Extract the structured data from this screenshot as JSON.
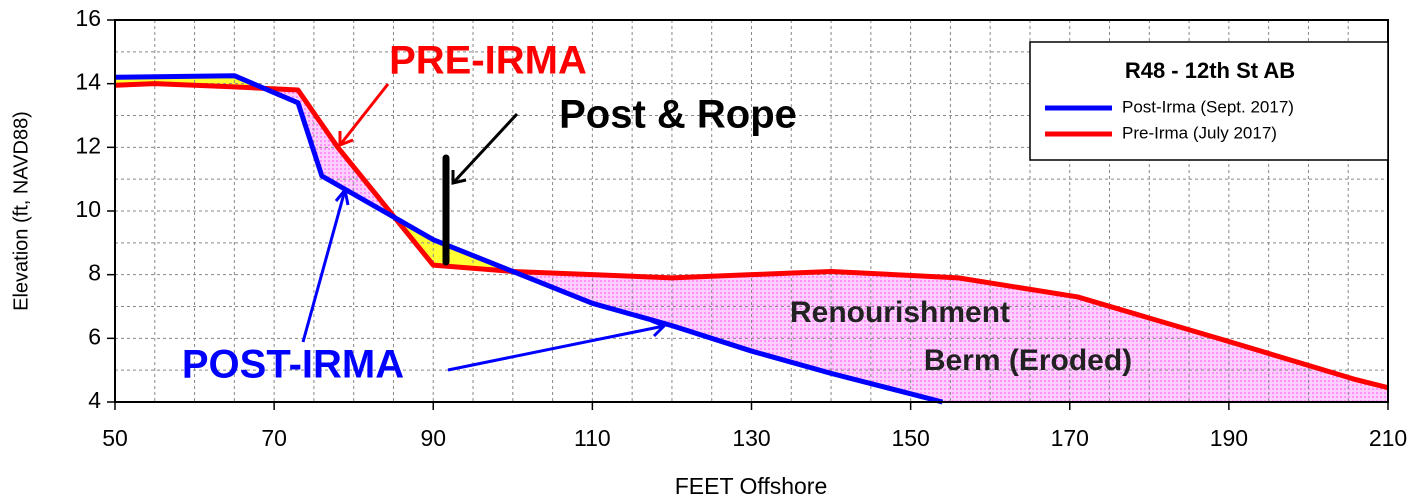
{
  "chart_data": {
    "type": "line",
    "xlabel": "FEET Offshore",
    "ylabel": "Elevation (ft, NAVD88)",
    "xlim": [
      50,
      210
    ],
    "ylim": [
      4,
      16
    ],
    "xticks": [
      50,
      70,
      90,
      110,
      130,
      150,
      170,
      190,
      210
    ],
    "yticks": [
      4,
      6,
      8,
      10,
      12,
      14,
      16
    ],
    "x_minor_ticks": [
      55,
      60,
      65,
      75,
      80,
      85,
      95,
      100,
      105,
      115,
      120,
      125,
      135,
      140,
      145,
      155,
      160,
      165,
      175,
      180,
      185,
      195,
      200,
      205
    ],
    "y_minor_ticks": [
      5,
      7,
      9,
      11,
      13,
      15
    ],
    "grid": true,
    "legend": {
      "title": "R48 - 12th St AB",
      "position": "upper right"
    },
    "series": [
      {
        "name": "Post-Irma (Sept. 2017)",
        "color": "#0000ff",
        "x": [
          50,
          65,
          73,
          76,
          90,
          100,
          110,
          120,
          130,
          140,
          154
        ],
        "values": [
          14.2,
          14.25,
          13.4,
          11.1,
          9.1,
          8.1,
          7.1,
          6.4,
          5.6,
          4.9,
          4.0
        ]
      },
      {
        "name": "Pre-Irma (July 2017)",
        "color": "#ff0000",
        "x": [
          50,
          55,
          65,
          73,
          78,
          90,
          100,
          110,
          120,
          130,
          140,
          156,
          171,
          190,
          206,
          210
        ],
        "values": [
          13.95,
          14.0,
          13.9,
          13.8,
          12.0,
          8.3,
          8.1,
          8.0,
          7.9,
          8.0,
          8.1,
          7.9,
          7.3,
          5.9,
          4.7,
          4.45
        ]
      }
    ],
    "annotations": [
      "PRE-IRMA",
      "Post & Rope",
      "POST-IRMA",
      "Renourishment",
      "Berm (Eroded)"
    ]
  }
}
